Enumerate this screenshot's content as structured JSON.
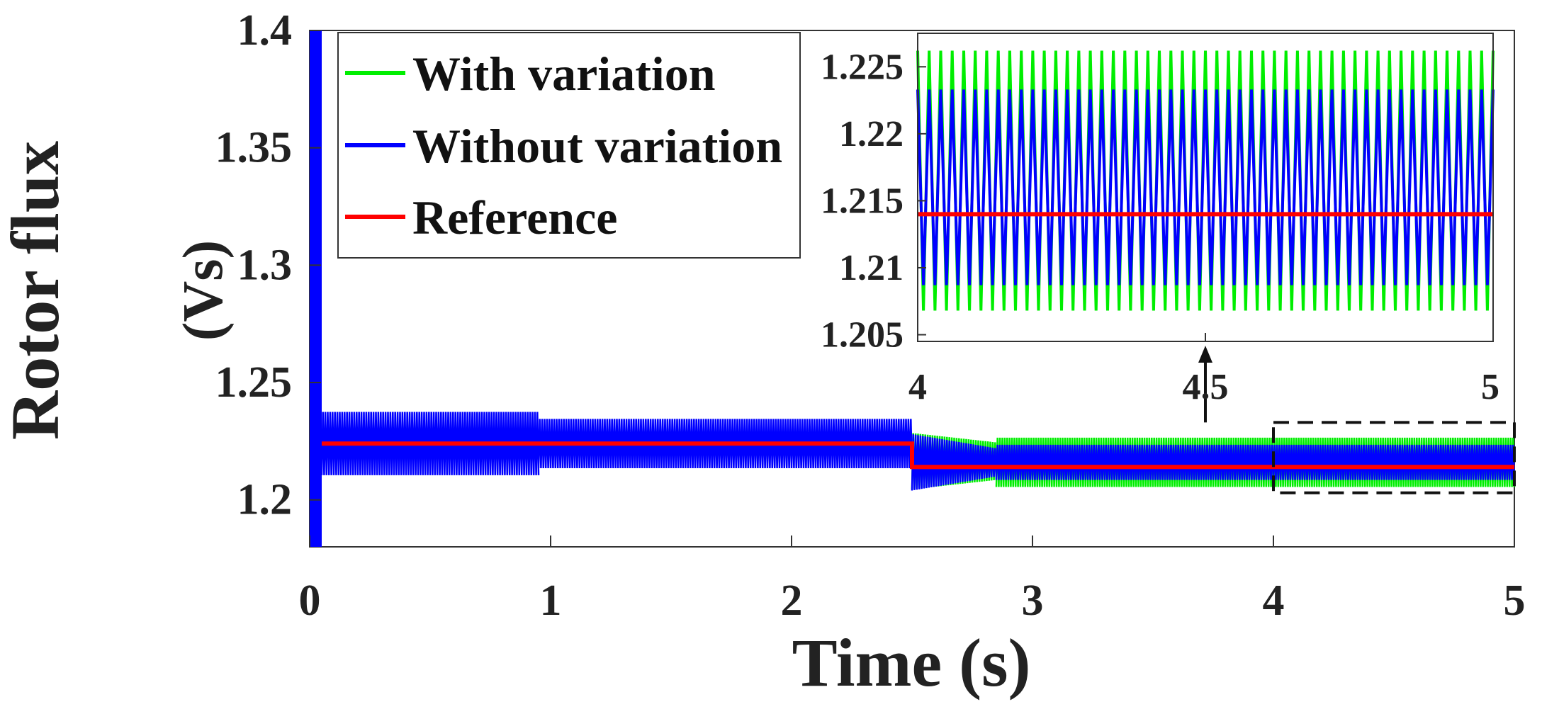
{
  "chart_data": [
    {
      "type": "line",
      "name": "main",
      "xlabel": "Time (s)",
      "ylabel_line1": "Rotor flux",
      "ylabel_line2": "(Vs)",
      "xlim": [
        0,
        5
      ],
      "ylim": [
        1.18,
        1.4
      ],
      "xticks": [
        0,
        1,
        2,
        3,
        4,
        5
      ],
      "xtick_labels": [
        "0",
        "1",
        "2",
        "3",
        "4",
        "5"
      ],
      "yticks": [
        1.2,
        1.25,
        1.3,
        1.35,
        1.4
      ],
      "ytick_labels": [
        "1.2",
        "1.25",
        "1.3",
        "1.35",
        "1.4"
      ],
      "grid": false,
      "legend_position": "top-left",
      "series": [
        {
          "name": "With variation",
          "color": "#00ee00",
          "kind": "oscillating_band",
          "segments": [
            {
              "t0": 2.5,
              "t1": 2.85,
              "center": 1.2165,
              "amp_start": 0.012,
              "amp_end": 0.008
            },
            {
              "t0": 2.85,
              "t1": 5.0,
              "center": 1.216,
              "amp_start": 0.0105,
              "amp_end": 0.0105
            }
          ]
        },
        {
          "name": "Without variation",
          "color": "#0000ff",
          "kind": "oscillating_band",
          "startup_spike": {
            "t0": 0.0,
            "t1": 0.05,
            "low": 1.18,
            "high": 1.4
          },
          "segments": [
            {
              "t0": 0.05,
              "t1": 0.95,
              "center": 1.224,
              "amp_start": 0.0135,
              "amp_end": 0.0135
            },
            {
              "t0": 0.95,
              "t1": 2.5,
              "center": 1.224,
              "amp_start": 0.0105,
              "amp_end": 0.0105
            },
            {
              "t0": 2.5,
              "t1": 2.85,
              "center": 1.216,
              "amp_start": 0.012,
              "amp_end": 0.006
            },
            {
              "t0": 2.85,
              "t1": 5.0,
              "center": 1.216,
              "amp_start": 0.0075,
              "amp_end": 0.0075
            }
          ]
        },
        {
          "name": "Reference",
          "color": "#ff0000",
          "kind": "step",
          "x": [
            0.05,
            2.5,
            2.5,
            5.0
          ],
          "y": [
            1.224,
            1.224,
            1.214,
            1.214
          ]
        }
      ]
    },
    {
      "type": "line",
      "name": "inset-zoom",
      "xlim": [
        4,
        5
      ],
      "ylim": [
        1.2045,
        1.2275
      ],
      "xticks": [
        4,
        4.5,
        5
      ],
      "xtick_labels": [
        "4",
        "4.5",
        "5"
      ],
      "yticks": [
        1.205,
        1.21,
        1.215,
        1.22,
        1.225
      ],
      "ytick_labels": [
        "1.205",
        "1.21",
        "1.215",
        "1.22",
        "1.225"
      ],
      "series": [
        {
          "name": "With variation",
          "color": "#00ee00",
          "kind": "oscillation",
          "center": 1.2165,
          "amp": 0.0097,
          "cycles": 50
        },
        {
          "name": "Without variation",
          "color": "#0000ff",
          "kind": "oscillation",
          "center": 1.216,
          "amp": 0.0073,
          "cycles": 50
        },
        {
          "name": "Reference",
          "color": "#ff0000",
          "kind": "constant",
          "value": 1.214
        }
      ]
    }
  ],
  "zoom_region": {
    "x0": 4.0,
    "x1": 5.0,
    "y0": 1.203,
    "y1": 1.233
  }
}
